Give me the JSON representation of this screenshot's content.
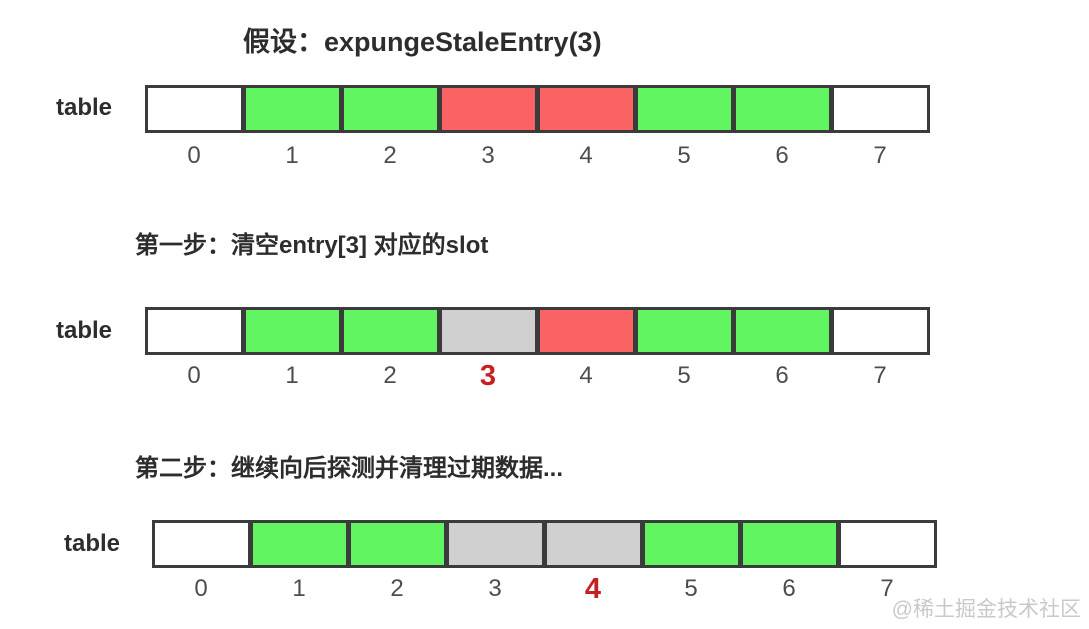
{
  "title": "假设：expungeStaleEntry(3)",
  "watermark": "@稀土掘金技术社区",
  "array_label": "table",
  "colors": {
    "empty": "#ffffff",
    "valid": "#62f562",
    "stale": "#f96363",
    "cleared": "#d0d0d0",
    "border": "#3b3b3b",
    "index_normal": "#4d4d4d",
    "index_highlight": "#c42222",
    "heading": "#2d2d2d",
    "watermark": "#c9c9c9"
  },
  "sections": [
    {
      "id": "initial",
      "heading": "",
      "cells": [
        {
          "index": "0",
          "state": "empty",
          "highlight": false
        },
        {
          "index": "1",
          "state": "valid",
          "highlight": false
        },
        {
          "index": "2",
          "state": "valid",
          "highlight": false
        },
        {
          "index": "3",
          "state": "stale",
          "highlight": false
        },
        {
          "index": "4",
          "state": "stale",
          "highlight": false
        },
        {
          "index": "5",
          "state": "valid",
          "highlight": false
        },
        {
          "index": "6",
          "state": "valid",
          "highlight": false
        },
        {
          "index": "7",
          "state": "empty",
          "highlight": false
        }
      ]
    },
    {
      "id": "step-1",
      "heading": "第一步：清空entry[3] 对应的slot",
      "cells": [
        {
          "index": "0",
          "state": "empty",
          "highlight": false
        },
        {
          "index": "1",
          "state": "valid",
          "highlight": false
        },
        {
          "index": "2",
          "state": "valid",
          "highlight": false
        },
        {
          "index": "3",
          "state": "cleared",
          "highlight": true
        },
        {
          "index": "4",
          "state": "stale",
          "highlight": false
        },
        {
          "index": "5",
          "state": "valid",
          "highlight": false
        },
        {
          "index": "6",
          "state": "valid",
          "highlight": false
        },
        {
          "index": "7",
          "state": "empty",
          "highlight": false
        }
      ]
    },
    {
      "id": "step-2",
      "heading": "第二步：继续向后探测并清理过期数据...",
      "cells": [
        {
          "index": "0",
          "state": "empty",
          "highlight": false
        },
        {
          "index": "1",
          "state": "valid",
          "highlight": false
        },
        {
          "index": "2",
          "state": "valid",
          "highlight": false
        },
        {
          "index": "3",
          "state": "cleared",
          "highlight": false
        },
        {
          "index": "4",
          "state": "cleared",
          "highlight": true
        },
        {
          "index": "5",
          "state": "valid",
          "highlight": false
        },
        {
          "index": "6",
          "state": "valid",
          "highlight": false
        },
        {
          "index": "7",
          "state": "empty",
          "highlight": false
        }
      ]
    }
  ]
}
